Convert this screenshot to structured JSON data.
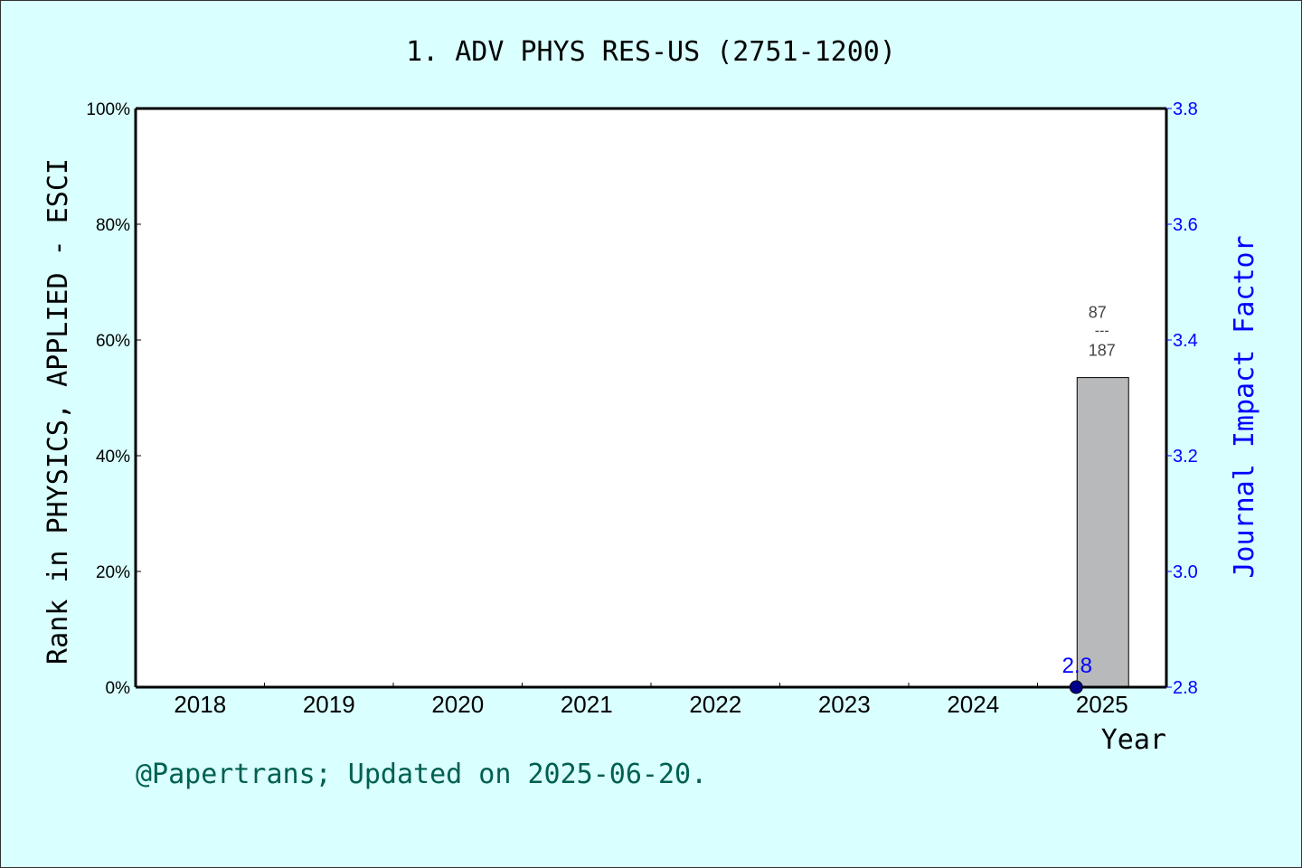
{
  "chart_data": {
    "type": "bar",
    "title": "1. ADV PHYS RES-US (2751-1200)",
    "xlabel": "Year",
    "ylabel": "Rank in PHYSICS, APPLIED - ESCI",
    "y2label": "Journal Impact Factor",
    "categories": [
      "2018",
      "2019",
      "2020",
      "2021",
      "2022",
      "2023",
      "2024",
      "2025"
    ],
    "ylim": [
      0,
      100
    ],
    "yticks": [
      "0%",
      "20%",
      "40%",
      "60%",
      "80%",
      "100%"
    ],
    "y2lim": [
      2.8,
      3.8
    ],
    "y2ticks": [
      "2.8",
      "3.0",
      "3.2",
      "3.4",
      "3.6",
      "3.8"
    ],
    "bars": [
      {
        "category": "2025",
        "rank": 87,
        "total": 187,
        "value_percent": 53.5,
        "label_top": "87",
        "label_sep": "---",
        "label_bottom": "187"
      }
    ],
    "impact_factor": [
      {
        "category": "2025",
        "value": 2.8,
        "label": "2.8"
      }
    ],
    "grid": false,
    "colors": {
      "bar": "#b8b9bb",
      "impact_factor": "#0000ff",
      "background": "#d9ffff",
      "plot": "#ffffff",
      "footer": "#006050"
    }
  },
  "footer": "@Papertrans; Updated on 2025-06-20."
}
